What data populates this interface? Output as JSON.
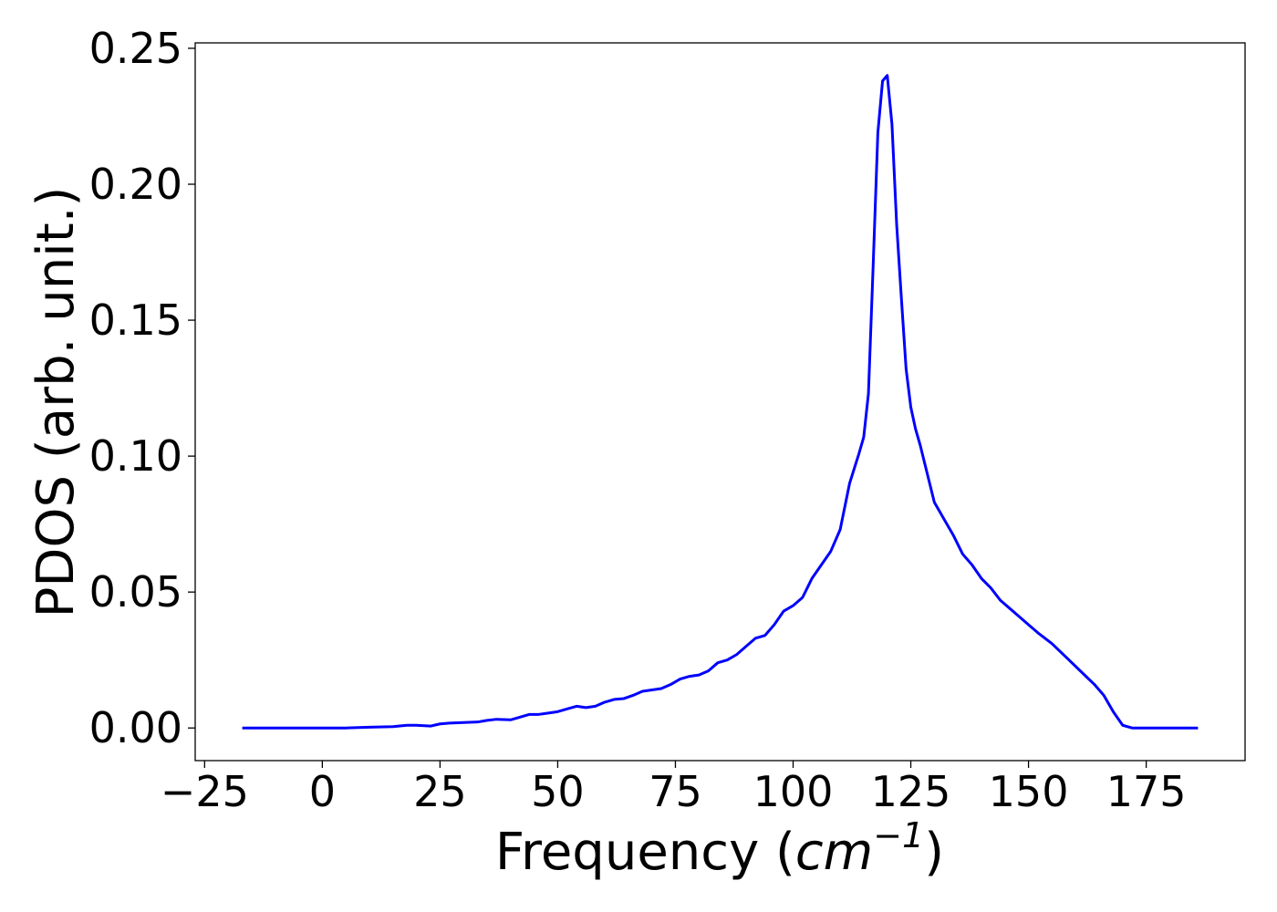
{
  "chart_data": {
    "type": "line",
    "xlabel": "Frequency (cm⁻¹)",
    "xlabel_parts": {
      "pre": "Frequency (",
      "unit": "cm",
      "exponent": "−1",
      "post": ")"
    },
    "ylabel": "PDOS (arb. unit.)",
    "xlim": [
      -27,
      196
    ],
    "ylim": [
      -0.012,
      0.252
    ],
    "xticks": [
      -25,
      0,
      25,
      50,
      75,
      100,
      125,
      150,
      175
    ],
    "xtick_labels": [
      "−25",
      "0",
      "25",
      "50",
      "75",
      "100",
      "125",
      "150",
      "175"
    ],
    "yticks": [
      0.0,
      0.05,
      0.1,
      0.15,
      0.2,
      0.25
    ],
    "ytick_labels": [
      "0.00",
      "0.05",
      "0.10",
      "0.15",
      "0.20",
      "0.25"
    ],
    "grid": false,
    "line_color": "#0000ff",
    "series": [
      {
        "x": [
          -17,
          0,
          5,
          10,
          15,
          18,
          20,
          23,
          25,
          27,
          30,
          33,
          35,
          37,
          40,
          42,
          44,
          46,
          48,
          50,
          52,
          54,
          56,
          58,
          60,
          62,
          64,
          66,
          68,
          70,
          72,
          74,
          76,
          78,
          80,
          82,
          84,
          86,
          88,
          90,
          92,
          94,
          96,
          98,
          100,
          102,
          104,
          106,
          108,
          110,
          112,
          114,
          115,
          116,
          117,
          118,
          119,
          120,
          121,
          122,
          123,
          124,
          125,
          126,
          127,
          128,
          130,
          132,
          134,
          136,
          138,
          140,
          142,
          144,
          146,
          148,
          150,
          152,
          155,
          158,
          161,
          164,
          166,
          168,
          170,
          172,
          175,
          180,
          186
        ],
        "y": [
          0.0,
          0.0,
          0.0,
          0.0003,
          0.0005,
          0.001,
          0.001,
          0.0007,
          0.0015,
          0.0018,
          0.002,
          0.0022,
          0.0028,
          0.0032,
          0.003,
          0.004,
          0.005,
          0.005,
          0.0055,
          0.006,
          0.007,
          0.008,
          0.0075,
          0.008,
          0.0095,
          0.0105,
          0.0108,
          0.012,
          0.0135,
          0.014,
          0.0145,
          0.016,
          0.018,
          0.019,
          0.0195,
          0.021,
          0.024,
          0.025,
          0.027,
          0.03,
          0.033,
          0.034,
          0.038,
          0.043,
          0.045,
          0.048,
          0.055,
          0.06,
          0.065,
          0.073,
          0.09,
          0.101,
          0.107,
          0.123,
          0.17,
          0.219,
          0.238,
          0.24,
          0.222,
          0.185,
          0.158,
          0.132,
          0.118,
          0.11,
          0.104,
          0.097,
          0.083,
          0.077,
          0.071,
          0.064,
          0.06,
          0.055,
          0.0515,
          0.047,
          0.044,
          0.041,
          0.038,
          0.035,
          0.031,
          0.026,
          0.021,
          0.016,
          0.012,
          0.006,
          0.001,
          0.0,
          0.0,
          0.0,
          0.0
        ]
      }
    ]
  }
}
